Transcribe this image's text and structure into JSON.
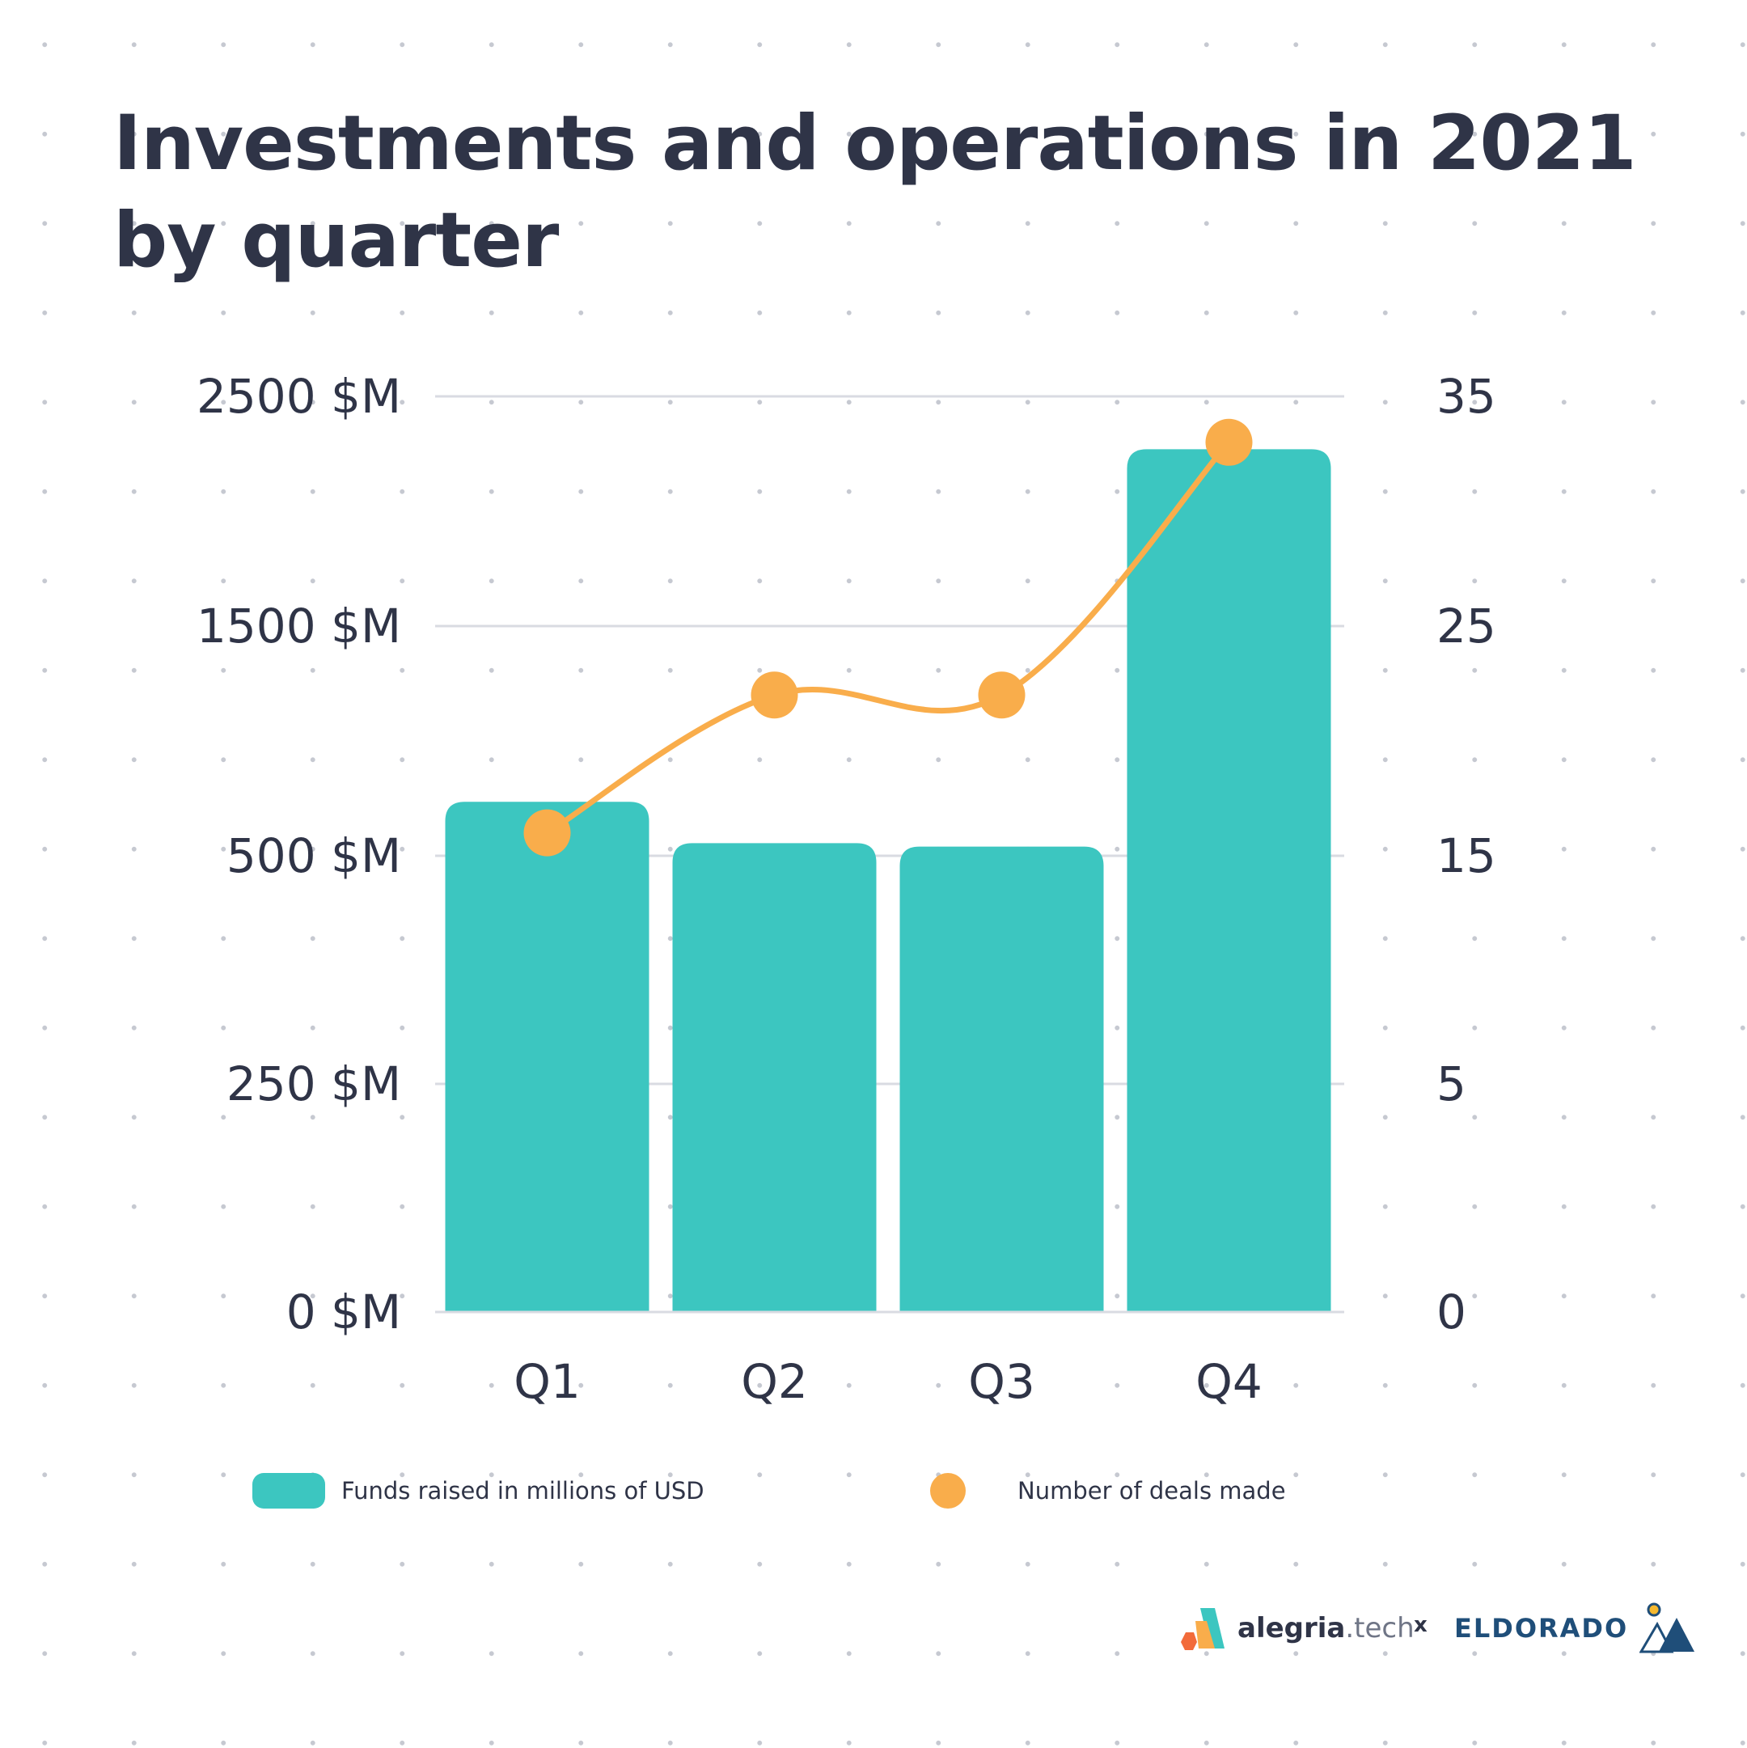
{
  "title": "Investments and operations in 2021 by quarter",
  "colors": {
    "bar": "#3cc6c0",
    "line": "#f9ad4b",
    "text": "#2f3447",
    "grid": "#d9dbe2"
  },
  "legend": {
    "funds_label": "Funds raised in millions of USD",
    "deals_label": "Number of deals made"
  },
  "branding": {
    "alegria_bold": "alegria",
    "alegria_light": ".tech",
    "separator": "x",
    "eldorado": "ELDORADO"
  },
  "chart_data": {
    "type": "bar",
    "categories": [
      "Q1",
      "Q2",
      "Q3",
      "Q4"
    ],
    "series": [
      {
        "name": "Funds raised in millions of USD",
        "type": "bar",
        "axis": "left",
        "values": [
          735,
          555,
          540,
          2270
        ]
      },
      {
        "name": "Number of deals made",
        "type": "line",
        "axis": "right",
        "values": [
          16,
          22,
          22,
          33
        ]
      }
    ],
    "left_axis": {
      "ticks": [
        0,
        250,
        500,
        1500,
        2500
      ],
      "tick_labels": [
        "0 $M",
        "250 $M",
        "500 $M",
        "1500 $M",
        "2500 $M"
      ]
    },
    "right_axis": {
      "ticks": [
        0,
        5,
        15,
        25,
        35
      ],
      "tick_labels": [
        "0",
        "5",
        "15",
        "25",
        "35"
      ],
      "ylim": [
        0,
        35
      ]
    },
    "grid": true,
    "legend_position": "bottom"
  }
}
